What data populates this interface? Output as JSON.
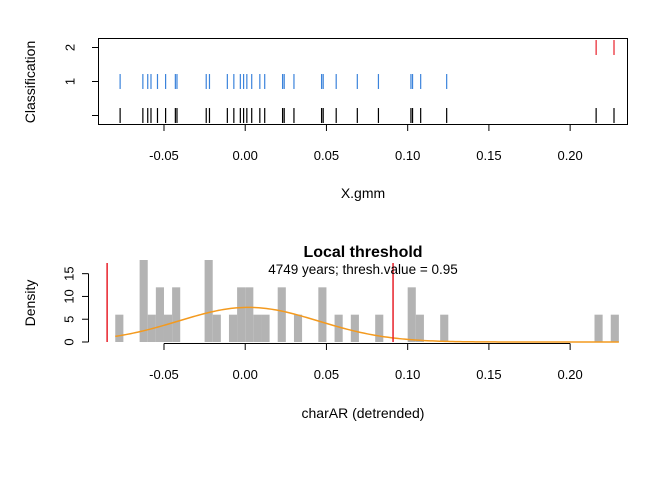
{
  "chart_data": [
    {
      "type": "scatter",
      "title": "",
      "xlabel": "X.gmm",
      "ylabel": "Classification",
      "xlim": [
        -0.09,
        0.235
      ],
      "ylim": [
        -0.25,
        2.25
      ],
      "x_ticks": [
        -0.05,
        0.0,
        0.05,
        0.1,
        0.15,
        0.2
      ],
      "x_tick_labels": [
        "-0.05",
        "0.00",
        "0.05",
        "0.10",
        "0.15",
        "0.20"
      ],
      "y_ticks": [
        1,
        2
      ],
      "y_tick_labels": [
        "1",
        "2"
      ],
      "rug": {
        "color": "#000000",
        "values": [
          -0.077,
          -0.063,
          -0.06,
          -0.058,
          -0.054,
          -0.049,
          -0.043,
          -0.042,
          -0.024,
          -0.022,
          -0.011,
          -0.007,
          -0.003,
          -0.001,
          0.001,
          0.004,
          0.009,
          0.012,
          0.023,
          0.024,
          0.03,
          0.047,
          0.048,
          0.056,
          0.069,
          0.082,
          0.102,
          0.103,
          0.108,
          0.124,
          0.216,
          0.227
        ]
      },
      "series": [
        {
          "name": "1",
          "color": "#3b83db",
          "y": 1,
          "values": [
            -0.077,
            -0.063,
            -0.06,
            -0.058,
            -0.054,
            -0.049,
            -0.043,
            -0.042,
            -0.024,
            -0.022,
            -0.011,
            -0.007,
            -0.003,
            -0.001,
            0.001,
            0.004,
            0.009,
            0.012,
            0.023,
            0.024,
            0.03,
            0.047,
            0.048,
            0.056,
            0.069,
            0.082,
            0.102,
            0.103,
            0.108,
            0.124
          ]
        },
        {
          "name": "2",
          "color": "#e8202a",
          "y": 2,
          "values": [
            0.216,
            0.227
          ]
        }
      ]
    },
    {
      "type": "bar",
      "title": "Local threshold",
      "subtitle": "4749 years; thresh.value = 0.95",
      "xlabel": "charAR (detrended)",
      "ylabel": "Density",
      "xlim": [
        -0.09,
        0.235
      ],
      "ylim": [
        0,
        18
      ],
      "x_ticks": [
        -0.05,
        0.0,
        0.05,
        0.1,
        0.15,
        0.2
      ],
      "x_tick_labels": [
        "-0.05",
        "0.00",
        "0.05",
        "0.10",
        "0.15",
        "0.20"
      ],
      "y_ticks": [
        0,
        5,
        10,
        15
      ],
      "y_tick_labels": [
        "0",
        "5",
        "10",
        "15"
      ],
      "bar_color": "#b3b3b3",
      "bin_width": 0.005,
      "histogram": [
        {
          "x0": -0.08,
          "value": 6
        },
        {
          "x0": -0.065,
          "value": 18
        },
        {
          "x0": -0.06,
          "value": 6
        },
        {
          "x0": -0.055,
          "value": 12
        },
        {
          "x0": -0.05,
          "value": 6
        },
        {
          "x0": -0.045,
          "value": 12
        },
        {
          "x0": -0.025,
          "value": 18
        },
        {
          "x0": -0.02,
          "value": 6
        },
        {
          "x0": -0.01,
          "value": 6
        },
        {
          "x0": -0.005,
          "value": 12
        },
        {
          "x0": 0.0,
          "value": 12
        },
        {
          "x0": 0.005,
          "value": 6
        },
        {
          "x0": 0.01,
          "value": 6
        },
        {
          "x0": 0.02,
          "value": 12
        },
        {
          "x0": 0.03,
          "value": 6
        },
        {
          "x0": 0.045,
          "value": 12
        },
        {
          "x0": 0.055,
          "value": 6
        },
        {
          "x0": 0.065,
          "value": 6
        },
        {
          "x0": 0.08,
          "value": 6
        },
        {
          "x0": 0.1,
          "value": 12
        },
        {
          "x0": 0.105,
          "value": 6
        },
        {
          "x0": 0.12,
          "value": 6
        },
        {
          "x0": 0.215,
          "value": 6
        },
        {
          "x0": 0.225,
          "value": 6
        }
      ],
      "curve": {
        "color": "#f39a1f",
        "mean": 0.002,
        "sd": 0.043,
        "x_range": [
          -0.08,
          0.23
        ]
      },
      "threshold_lines": {
        "color": "#e8202a",
        "values": [
          -0.085,
          0.091
        ]
      }
    }
  ]
}
